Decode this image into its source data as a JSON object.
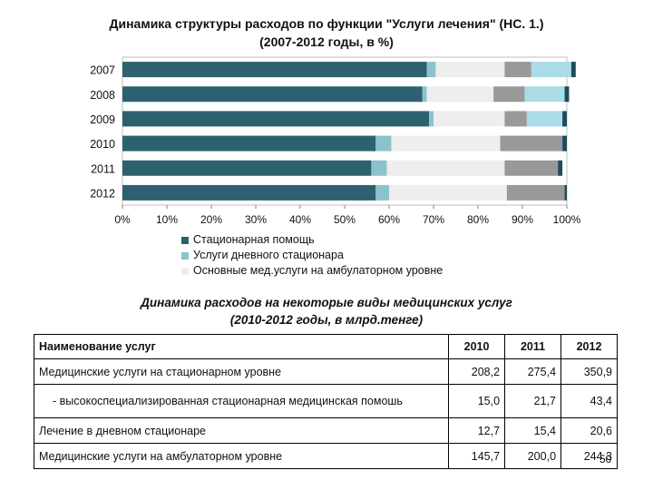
{
  "chart_data": {
    "type": "bar",
    "orientation": "horizontal",
    "stacked": true,
    "percent": true,
    "title": [
      "Динамика структуры расходов по функции \"Услуги лечения\" (НС. 1.)",
      "(2007-2012 годы, в %)"
    ],
    "categories": [
      "2007",
      "2008",
      "2009",
      "2010",
      "2011",
      "2012"
    ],
    "xlim": [
      0,
      100
    ],
    "x_ticks": [
      "0%",
      "10%",
      "20%",
      "30%",
      "40%",
      "50%",
      "60%",
      "70%",
      "80%",
      "90%",
      "100%"
    ],
    "legend_position": "bottom",
    "series": [
      {
        "name": "Стационарная помощь",
        "color": "#2E6170",
        "values": [
          68.5,
          67.5,
          69,
          57,
          56,
          57
        ]
      },
      {
        "name": "Услуги дневного стационара",
        "color": "#8CC2CC",
        "values": [
          2,
          1,
          1,
          3.5,
          3.5,
          3
        ]
      },
      {
        "name": "Основные мед.услуги на амбулаторном уровне",
        "color": "#EEEEEE",
        "values": [
          15.5,
          15,
          16,
          24.5,
          26.5,
          26.5
        ]
      },
      {
        "name": "",
        "color": "#999999",
        "values": [
          6,
          7,
          5,
          14,
          12,
          13
        ]
      },
      {
        "name": "",
        "color": "#A9DCE6",
        "values": [
          9,
          9,
          8,
          0,
          0,
          0
        ]
      },
      {
        "name": "",
        "color": "#1E4A5C",
        "values": [
          1,
          1,
          1,
          1,
          1,
          0.5
        ]
      }
    ]
  },
  "table_title": [
    "Динамика расходов на некоторые виды медицинских услуг",
    "(2010-2012 годы, в млрд.тенге)"
  ],
  "table": {
    "headers": [
      "Наименование услуг",
      "2010",
      "2011",
      "2012"
    ],
    "rows": [
      {
        "name": "Медицинские услуги на стационарном уровне",
        "values": [
          "208,2",
          "275,4",
          "350,9"
        ]
      },
      {
        "name": "- высокоспециализированная стационарная медицинская помошь",
        "values": [
          "15,0",
          "21,7",
          "43,4"
        ]
      },
      {
        "name": "Лечение в дневном стационаре",
        "values": [
          "12,7",
          "15,4",
          "20,6"
        ]
      },
      {
        "name": "Медицинские услуги на амбулаторном уровне",
        "values": [
          "145,7",
          "200,0",
          "244,3"
        ]
      }
    ]
  },
  "page_number": "50"
}
